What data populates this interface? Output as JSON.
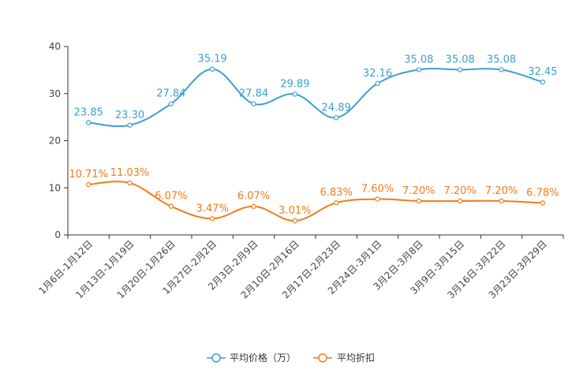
{
  "chart_data": {
    "type": "line",
    "title": "",
    "xlabel": "",
    "ylabel": "",
    "ylim": [
      0,
      40
    ],
    "yticks": [
      0,
      10,
      20,
      30,
      40
    ],
    "grid": false,
    "legend_position": "bottom-center",
    "categories": [
      "1月6日-1月12日",
      "1月13日-1月19日",
      "1月20日-1月26日",
      "1月27日-2月2日",
      "2月3日-2月9日",
      "2月10日-2月16日",
      "2月17日-2月23日",
      "2月24日-3月1日",
      "3月2日-3月8日",
      "3月9日-3月15日",
      "3月16日-3月22日",
      "3月23日-3月29日"
    ],
    "series": [
      {
        "name": "平均价格（万）",
        "color": "#3d9fcf",
        "values": [
          23.85,
          23.3,
          27.84,
          35.19,
          27.84,
          29.89,
          24.89,
          32.16,
          35.08,
          35.08,
          35.08,
          32.45
        ],
        "labels": [
          "23.85",
          "23.30",
          "27.84",
          "35.19",
          "27.84",
          "29.89",
          "24.89",
          "32.16",
          "35.08",
          "35.08",
          "35.08",
          "32.45"
        ]
      },
      {
        "name": "平均折扣",
        "color": "#f07c1a",
        "values": [
          10.71,
          11.03,
          6.07,
          3.47,
          6.07,
          3.01,
          6.83,
          7.6,
          7.2,
          7.2,
          7.2,
          6.78
        ],
        "labels": [
          "10.71%",
          "11.03%",
          "6.07%",
          "3.47%",
          "6.07%",
          "3.01%",
          "6.83%",
          "7.60%",
          "7.20%",
          "7.20%",
          "7.20%",
          "6.78%"
        ]
      }
    ]
  }
}
